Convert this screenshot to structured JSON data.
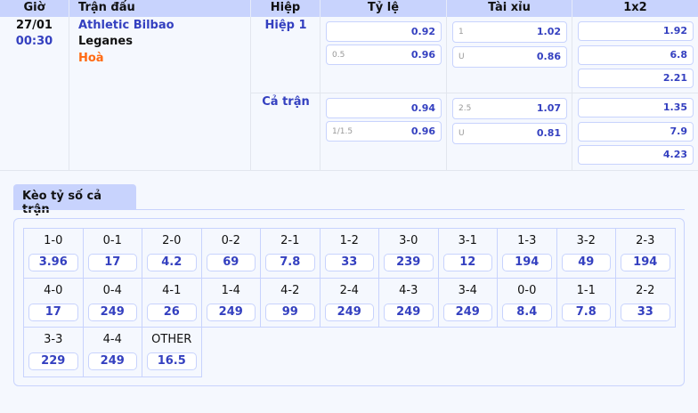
{
  "headers": [
    "Giờ",
    "Trận đấu",
    "Hiệp",
    "Tỷ lệ",
    "Tài xỉu",
    "1x2"
  ],
  "match": {
    "date": "27/01",
    "time": "00:30",
    "home": "Athletic Bilbao",
    "away": "Leganes",
    "draw": "Hoà"
  },
  "periods": [
    {
      "name": "Hiệp 1",
      "handicap": [
        {
          "line": "",
          "odd": "0.92"
        },
        {
          "line": "0.5",
          "odd": "0.96"
        }
      ],
      "over_under": [
        {
          "line": "1",
          "odd": "1.02"
        },
        {
          "line": "U",
          "odd": "0.86"
        }
      ],
      "x12": [
        "1.92",
        "6.8",
        "2.21"
      ]
    },
    {
      "name": "Cả trận",
      "handicap": [
        {
          "line": "",
          "odd": "0.94"
        },
        {
          "line": "1/1.5",
          "odd": "0.96"
        }
      ],
      "over_under": [
        {
          "line": "2.5",
          "odd": "1.07"
        },
        {
          "line": "U",
          "odd": "0.81"
        }
      ],
      "x12": [
        "1.35",
        "7.9",
        "4.23"
      ]
    }
  ],
  "correct_score": {
    "tab_label": "Kèo tỷ số cả trận",
    "items": [
      {
        "score": "1-0",
        "odd": "3.96"
      },
      {
        "score": "0-1",
        "odd": "17"
      },
      {
        "score": "2-0",
        "odd": "4.2"
      },
      {
        "score": "0-2",
        "odd": "69"
      },
      {
        "score": "2-1",
        "odd": "7.8"
      },
      {
        "score": "1-2",
        "odd": "33"
      },
      {
        "score": "3-0",
        "odd": "239"
      },
      {
        "score": "3-1",
        "odd": "12"
      },
      {
        "score": "1-3",
        "odd": "194"
      },
      {
        "score": "3-2",
        "odd": "49"
      },
      {
        "score": "2-3",
        "odd": "194"
      },
      {
        "score": "4-0",
        "odd": "17"
      },
      {
        "score": "0-4",
        "odd": "249"
      },
      {
        "score": "4-1",
        "odd": "26"
      },
      {
        "score": "1-4",
        "odd": "249"
      },
      {
        "score": "4-2",
        "odd": "99"
      },
      {
        "score": "2-4",
        "odd": "249"
      },
      {
        "score": "4-3",
        "odd": "249"
      },
      {
        "score": "3-4",
        "odd": "249"
      },
      {
        "score": "0-0",
        "odd": "8.4"
      },
      {
        "score": "1-1",
        "odd": "7.8"
      },
      {
        "score": "2-2",
        "odd": "33"
      },
      {
        "score": "3-3",
        "odd": "229"
      },
      {
        "score": "4-4",
        "odd": "249"
      },
      {
        "score": "OTHER",
        "odd": "16.5"
      }
    ]
  },
  "colors": {
    "header_bg": "#c8d3fd",
    "accent": "#3440c0",
    "draw": "#ff6a13"
  }
}
